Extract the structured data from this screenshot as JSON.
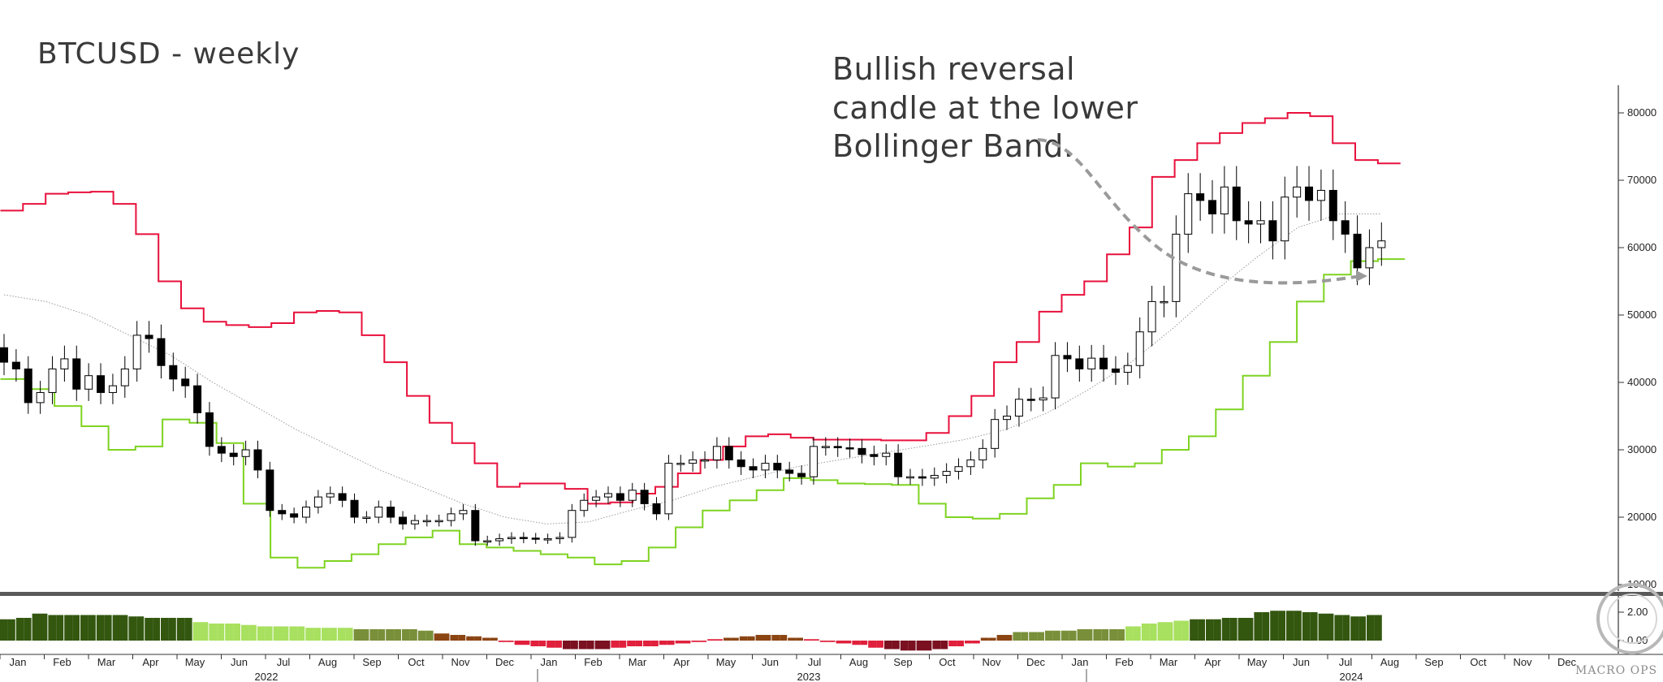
{
  "colors": {
    "upper_band": "#e8103c",
    "lower_band": "#7ed321",
    "middle_band": "#9a9a9a",
    "candle_up": "#ffffff",
    "candle_down": "#000000",
    "annotation_arrow": "#9a9a9a",
    "hist_dark_green": "#33570f",
    "hist_light_green": "#a8e05f",
    "hist_olive": "#7a8f3a",
    "hist_brown": "#8b4513",
    "hist_red": "#e0203c",
    "hist_dark_red": "#7a1020"
  },
  "watermark": "MACRO OPS",
  "chart_data": [
    {
      "type": "candlestick",
      "title": "BTCUSD - weekly",
      "annotation": "Bullish reversal candle at the lower Bollinger Band.",
      "annotation_lines": [
        "Bullish reversal",
        "candle at the lower",
        "Bollinger Band."
      ],
      "y_ticks": [
        10000,
        20000,
        30000,
        40000,
        50000,
        60000,
        70000,
        80000
      ],
      "y_tick_labels": [
        "10000",
        "20000",
        "30000",
        "40000",
        "50000",
        "60000",
        "70000",
        "80000"
      ],
      "ylim": [
        10000,
        83000
      ],
      "x_month_labels": [
        "Jan",
        "Feb",
        "Mar",
        "Apr",
        "May",
        "Jun",
        "Jul",
        "Aug",
        "Sep",
        "Oct",
        "Nov",
        "Dec",
        "Jan",
        "Feb",
        "Mar",
        "Apr",
        "May",
        "Jun",
        "Jul",
        "Aug",
        "Sep",
        "Oct",
        "Nov",
        "Dec",
        "Jan",
        "Feb",
        "Mar",
        "Apr",
        "May",
        "Jun",
        "Jul",
        "Aug",
        "Sep",
        "Oct",
        "Nov",
        "Dec"
      ],
      "x_year_labels": [
        "2022",
        "2023",
        "2024"
      ],
      "close": [
        43000,
        42000,
        37000,
        38500,
        42000,
        43500,
        39000,
        41000,
        38500,
        39500,
        42000,
        47000,
        46500,
        42500,
        40500,
        39500,
        35500,
        30500,
        29500,
        29000,
        30000,
        27000,
        21000,
        20500,
        20000,
        21500,
        23000,
        23500,
        22500,
        20000,
        20000,
        21500,
        20000,
        19000,
        19500,
        19500,
        19500,
        20500,
        21000,
        16500,
        16500,
        16800,
        17000,
        16900,
        16800,
        16800,
        17000,
        21000,
        22500,
        23000,
        23500,
        22500,
        24000,
        22000,
        20500,
        28000,
        28000,
        28500,
        28500,
        30500,
        28500,
        27500,
        27000,
        28000,
        27000,
        26500,
        26000,
        30500,
        30500,
        30300,
        30200,
        29300,
        29000,
        29500,
        26000,
        26000,
        25800,
        26200,
        26800,
        27500,
        28500,
        30200,
        34500,
        35000,
        37500,
        37400,
        37700,
        44000,
        43500,
        42000,
        43600,
        42000,
        41500,
        42500,
        47500,
        52000,
        52000,
        62000,
        68000,
        67000,
        65000,
        69000,
        64000,
        63500,
        64000,
        61000,
        67500,
        69000,
        67000,
        68500,
        64000,
        62000,
        57000,
        60000,
        61000
      ],
      "upper_band": [
        65500,
        66500,
        68000,
        68200,
        68300,
        66500,
        62000,
        55000,
        51000,
        49000,
        48500,
        48200,
        48800,
        50400,
        50600,
        50400,
        47000,
        43000,
        38000,
        34000,
        31000,
        28000,
        24500,
        25000,
        25000,
        24200,
        22000,
        22200,
        23500,
        24500,
        26500,
        28500,
        30500,
        32000,
        32300,
        31800,
        31500,
        31500,
        31500,
        31400,
        31400,
        32500,
        35000,
        38000,
        43000,
        46000,
        50500,
        53000,
        55000,
        59000,
        63000,
        70500,
        73000,
        75500,
        77000,
        78500,
        79200,
        80000,
        79500,
        75500,
        73000,
        72500
      ],
      "middle_band": [
        53000,
        52000,
        50000,
        47000,
        44000,
        40000,
        36500,
        33000,
        30000,
        27000,
        24500,
        22000,
        20000,
        19000,
        19300,
        21000,
        22500,
        24500,
        26000,
        27500,
        28500,
        29500,
        30500,
        31500,
        33000,
        35500,
        39000,
        43000,
        48000,
        53500,
        58500,
        63000,
        65000,
        65000
      ],
      "lower_band": [
        40500,
        39000,
        36500,
        33500,
        30000,
        30500,
        34500,
        34000,
        31000,
        22000,
        14000,
        12500,
        13500,
        14500,
        16000,
        17000,
        18000,
        16000,
        15500,
        15000,
        14500,
        14000,
        13000,
        13500,
        15500,
        18500,
        21000,
        22500,
        24000,
        25800,
        25500,
        25000,
        24900,
        24800,
        22000,
        20000,
        19800,
        20500,
        22800,
        24800,
        28000,
        27500,
        28000,
        30000,
        32000,
        36000,
        41000,
        46000,
        52000,
        56000,
        58000,
        58300
      ],
      "histogram": [
        1.5,
        1.6,
        1.9,
        1.8,
        1.8,
        1.8,
        1.8,
        1.8,
        1.7,
        1.6,
        1.6,
        1.6,
        1.3,
        1.2,
        1.2,
        1.1,
        1.0,
        1.0,
        1.0,
        0.9,
        0.9,
        0.9,
        0.8,
        0.8,
        0.8,
        0.8,
        0.7,
        0.5,
        0.4,
        0.3,
        0.2,
        -0.1,
        -0.3,
        -0.4,
        -0.5,
        -0.6,
        -0.6,
        -0.6,
        -0.5,
        -0.4,
        -0.4,
        -0.3,
        -0.2,
        -0.1,
        0.1,
        0.2,
        0.3,
        0.4,
        0.4,
        0.2,
        0.1,
        -0.1,
        -0.2,
        -0.3,
        -0.5,
        -0.6,
        -0.7,
        -0.7,
        -0.6,
        -0.4,
        -0.2,
        0.2,
        0.4,
        0.6,
        0.6,
        0.7,
        0.7,
        0.8,
        0.8,
        0.8,
        1.0,
        1.2,
        1.3,
        1.4,
        1.5,
        1.5,
        1.6,
        1.6,
        2.0,
        2.1,
        2.1,
        2.0,
        1.9,
        1.8,
        1.7,
        1.8
      ]
    }
  ]
}
